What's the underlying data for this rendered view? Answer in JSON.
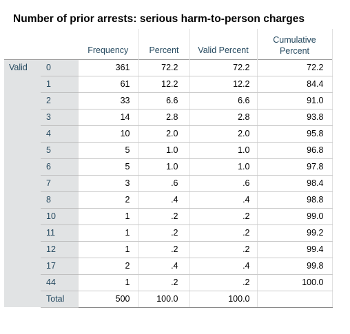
{
  "title": "Number of prior arrests: serious harm-to-person charges",
  "headers": {
    "frequency": "Frequency",
    "percent": "Percent",
    "valid_percent": "Valid Percent",
    "cumulative_line1": "Cumulative",
    "cumulative_line2": "Percent"
  },
  "group_label": "Valid",
  "rows": [
    {
      "value": "0",
      "frequency": "361",
      "percent": "72.2",
      "valid_percent": "72.2",
      "cumulative_percent": "72.2"
    },
    {
      "value": "1",
      "frequency": "61",
      "percent": "12.2",
      "valid_percent": "12.2",
      "cumulative_percent": "84.4"
    },
    {
      "value": "2",
      "frequency": "33",
      "percent": "6.6",
      "valid_percent": "6.6",
      "cumulative_percent": "91.0"
    },
    {
      "value": "3",
      "frequency": "14",
      "percent": "2.8",
      "valid_percent": "2.8",
      "cumulative_percent": "93.8"
    },
    {
      "value": "4",
      "frequency": "10",
      "percent": "2.0",
      "valid_percent": "2.0",
      "cumulative_percent": "95.8"
    },
    {
      "value": "5",
      "frequency": "5",
      "percent": "1.0",
      "valid_percent": "1.0",
      "cumulative_percent": "96.8"
    },
    {
      "value": "6",
      "frequency": "5",
      "percent": "1.0",
      "valid_percent": "1.0",
      "cumulative_percent": "97.8"
    },
    {
      "value": "7",
      "frequency": "3",
      "percent": ".6",
      "valid_percent": ".6",
      "cumulative_percent": "98.4"
    },
    {
      "value": "8",
      "frequency": "2",
      "percent": ".4",
      "valid_percent": ".4",
      "cumulative_percent": "98.8"
    },
    {
      "value": "10",
      "frequency": "1",
      "percent": ".2",
      "valid_percent": ".2",
      "cumulative_percent": "99.0"
    },
    {
      "value": "11",
      "frequency": "1",
      "percent": ".2",
      "valid_percent": ".2",
      "cumulative_percent": "99.2"
    },
    {
      "value": "12",
      "frequency": "1",
      "percent": ".2",
      "valid_percent": ".2",
      "cumulative_percent": "99.4"
    },
    {
      "value": "17",
      "frequency": "2",
      "percent": ".4",
      "valid_percent": ".4",
      "cumulative_percent": "99.8"
    },
    {
      "value": "44",
      "frequency": "1",
      "percent": ".2",
      "valid_percent": ".2",
      "cumulative_percent": "100.0"
    },
    {
      "value": "Total",
      "frequency": "500",
      "percent": "100.0",
      "valid_percent": "100.0",
      "cumulative_percent": ""
    }
  ],
  "colors": {
    "stub_background": "#e1e3e4",
    "label_text": "#264a60",
    "value_text": "#010101"
  }
}
